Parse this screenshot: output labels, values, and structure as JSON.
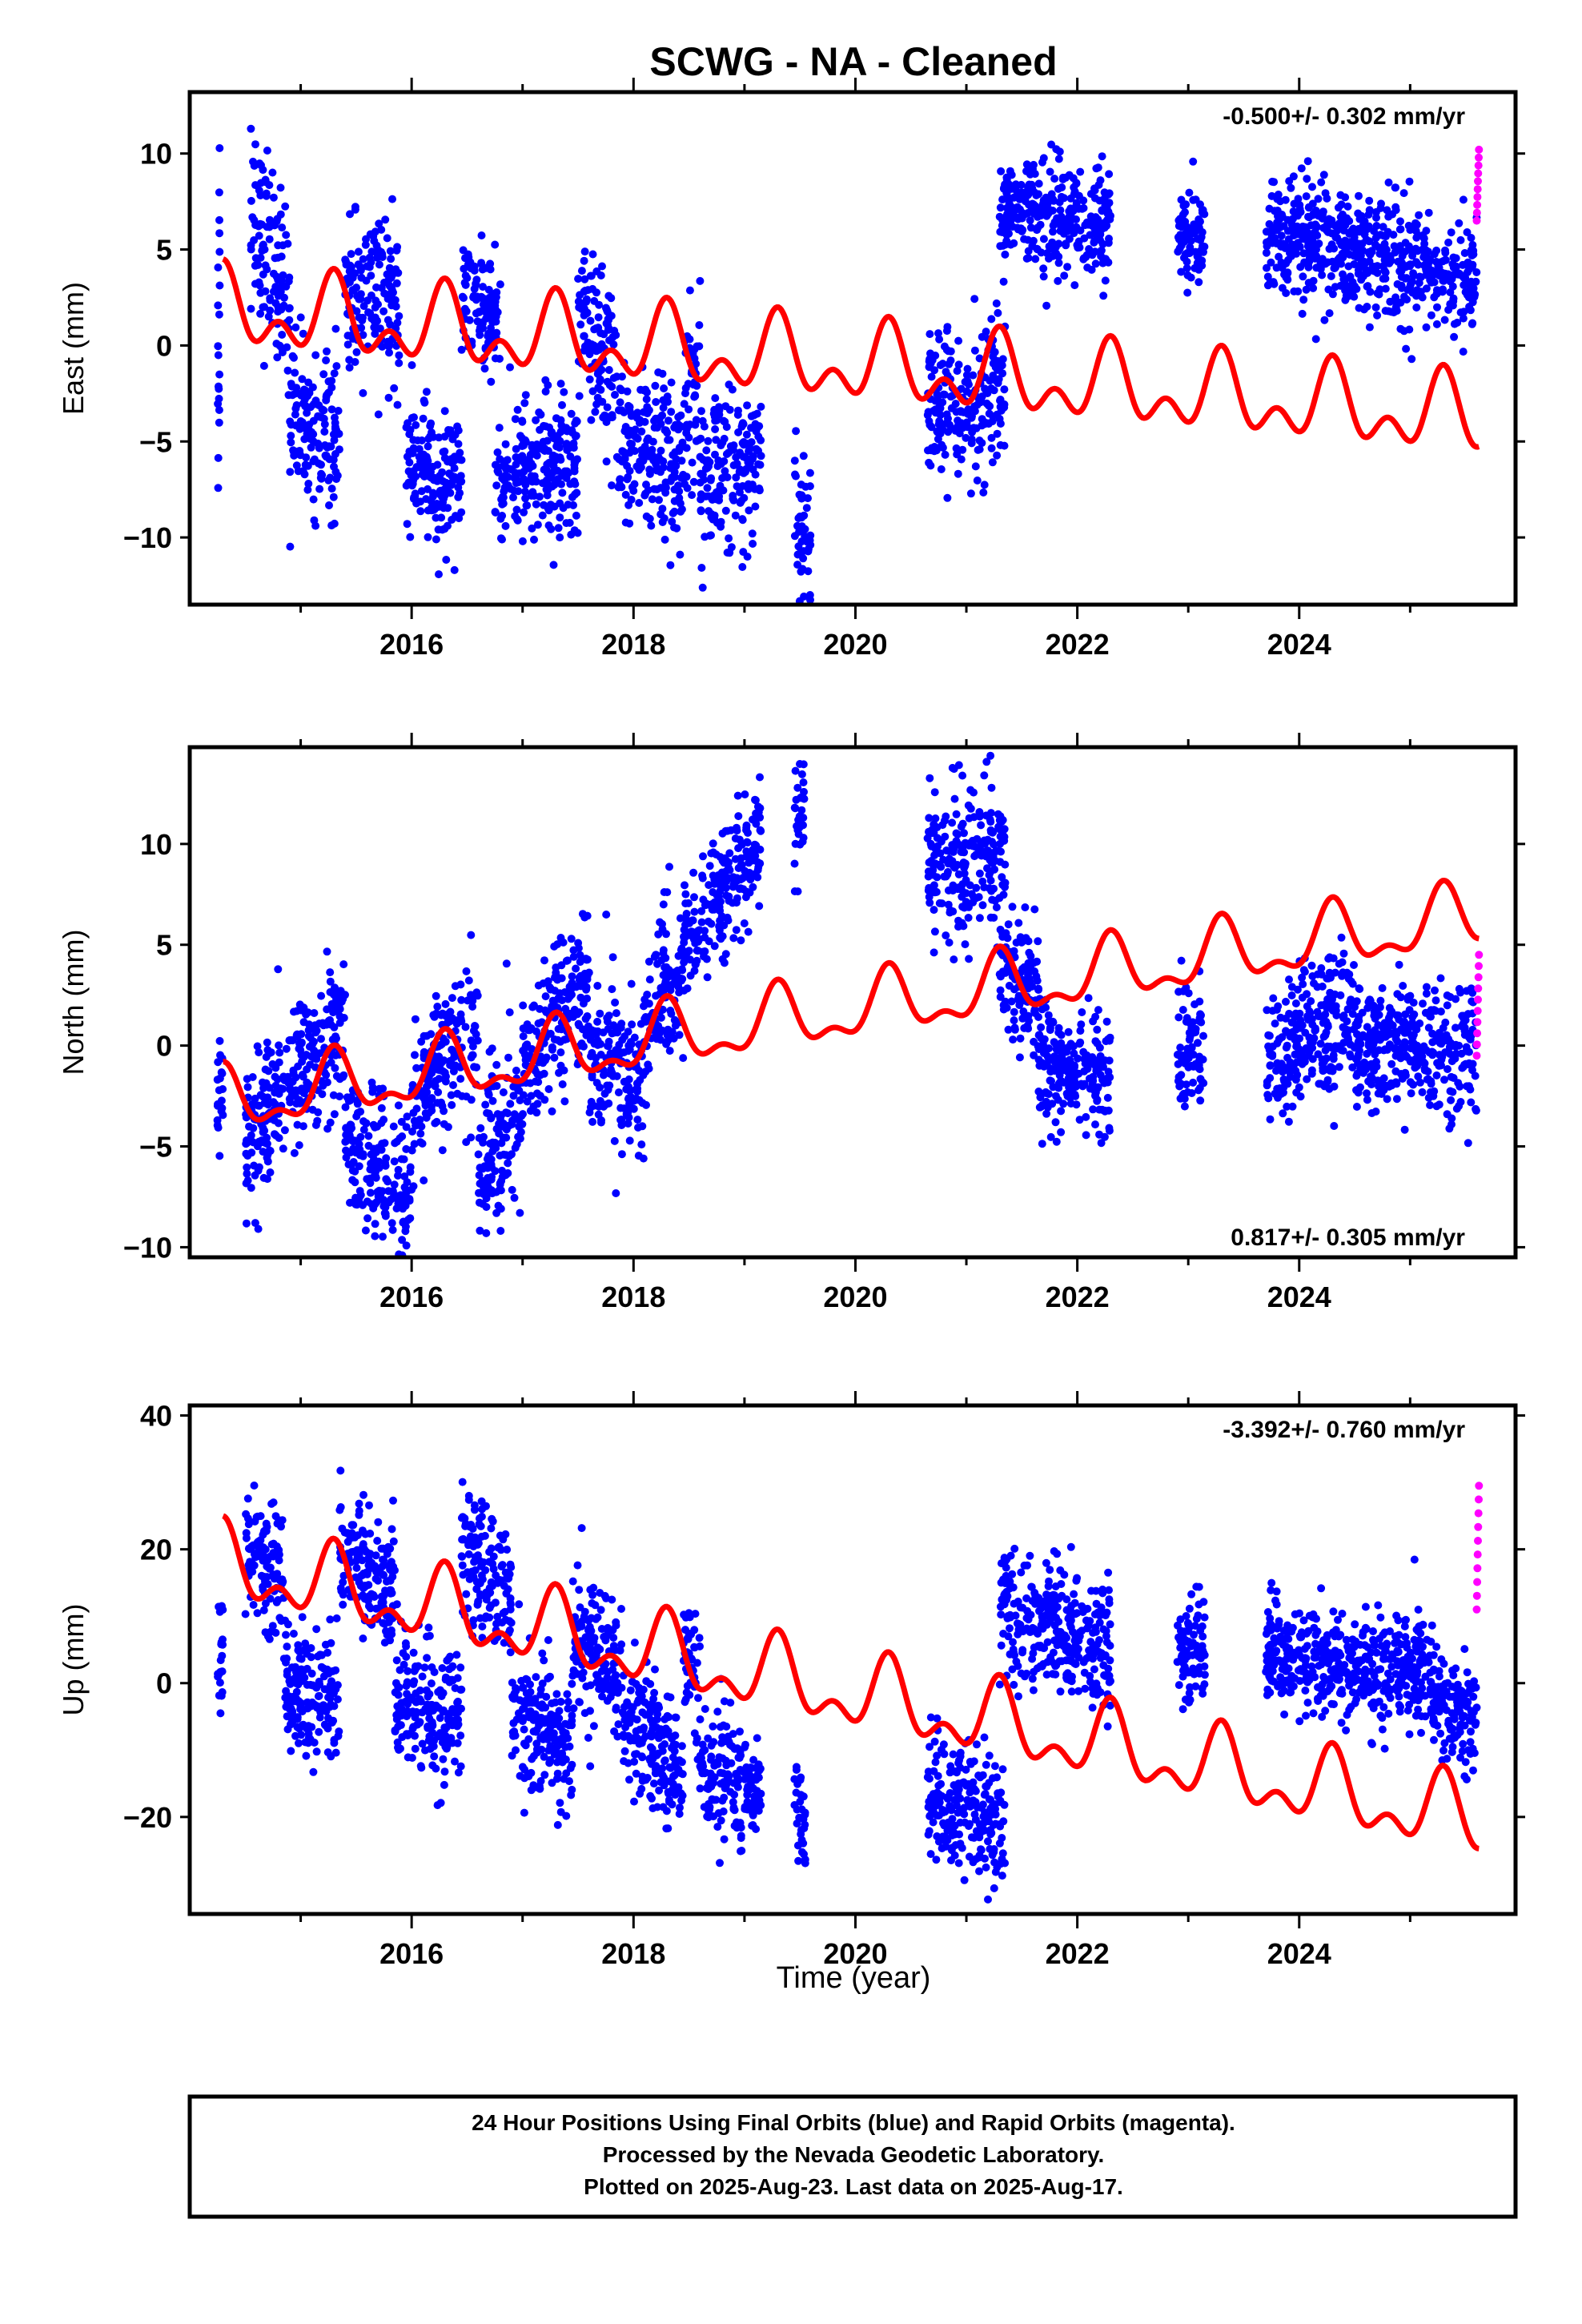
{
  "title": "SCWG  - NA - Cleaned",
  "xlabel": "Time (year)",
  "footer": {
    "line1": "24 Hour Positions Using Final Orbits (blue) and Rapid Orbits (magenta).",
    "line2": "Processed by the Nevada Geodetic Laboratory.",
    "line3": "Plotted on 2025-Aug-23. Last data on 2025-Aug-17."
  },
  "colors": {
    "final": "#0000ff",
    "rapid": "#ff00ff",
    "model": "#ff0000"
  },
  "chart_data": [
    {
      "type": "scatter",
      "component": "east",
      "ylabel": "East (mm)",
      "rate": "-0.500+/- 0.302 mm/yr",
      "xlim": [
        2014.0,
        2025.95
      ],
      "ylim": [
        -13.5,
        13.2
      ],
      "yticks": [
        -10,
        -5,
        0,
        5,
        10
      ],
      "xticks": [
        2016,
        2018,
        2020,
        2022,
        2024
      ],
      "grid": false,
      "segments": [
        {
          "x": [
            2014.25,
            2014.27
          ],
          "y": [
            -4,
            5
          ],
          "spread": 4.5
        },
        {
          "x": [
            2014.55,
            2014.9
          ],
          "y": [
            6,
            3
          ],
          "spread": 2.5
        },
        {
          "x": [
            2014.9,
            2015.35
          ],
          "y": [
            -3.5,
            -5
          ],
          "spread": 2
        },
        {
          "x": [
            2015.4,
            2015.9
          ],
          "y": [
            2.5,
            2
          ],
          "spread": 2
        },
        {
          "x": [
            2015.95,
            2016.45
          ],
          "y": [
            -6.5,
            -7
          ],
          "spread": 1.8
        },
        {
          "x": [
            2016.45,
            2016.8
          ],
          "y": [
            2.5,
            1.5
          ],
          "spread": 1.5
        },
        {
          "x": [
            2016.75,
            2017.5
          ],
          "y": [
            -7,
            -6
          ],
          "spread": 1.8
        },
        {
          "x": [
            2017.5,
            2017.85
          ],
          "y": [
            1.5,
            -2
          ],
          "spread": 2.2
        },
        {
          "x": [
            2017.85,
            2018.45
          ],
          "y": [
            -5,
            -6.5
          ],
          "spread": 2
        },
        {
          "x": [
            2018.45,
            2018.6
          ],
          "y": [
            -3,
            -2
          ],
          "spread": 2.5
        },
        {
          "x": [
            2018.6,
            2019.15
          ],
          "y": [
            -7,
            -6
          ],
          "spread": 2
        },
        {
          "x": [
            2019.45,
            2019.6
          ],
          "y": [
            -9,
            -10
          ],
          "spread": 2
        },
        {
          "x": [
            2020.65,
            2021.35
          ],
          "y": [
            -3,
            -3
          ],
          "spread": 2
        },
        {
          "x": [
            2021.3,
            2022.3
          ],
          "y": [
            7,
            6
          ],
          "spread": 1.5
        },
        {
          "x": [
            2022.9,
            2023.15
          ],
          "y": [
            5.5,
            5.5
          ],
          "spread": 1.3
        },
        {
          "x": [
            2023.7,
            2025.6
          ],
          "y": [
            6,
            3.5
          ],
          "spread": 1.5
        }
      ],
      "rapid": {
        "x": [
          2025.6,
          2025.62
        ],
        "y": [
          6.5,
          10.2
        ]
      },
      "model": {
        "slope": -0.5,
        "offset": 1.8,
        "amp1": 1.5,
        "amp2": 1.2,
        "x0": 2014.3,
        "x1": 2025.62
      }
    },
    {
      "type": "scatter",
      "component": "north",
      "ylabel": "North (mm)",
      "rate": "0.817+/- 0.305 mm/yr",
      "xlim": [
        2014.0,
        2025.95
      ],
      "ylim": [
        -10.5,
        14.8
      ],
      "yticks": [
        -10,
        -5,
        0,
        5,
        10
      ],
      "xticks": [
        2016,
        2018,
        2020,
        2022,
        2024
      ],
      "grid": false,
      "segments": [
        {
          "x": [
            2014.25,
            2014.3
          ],
          "y": [
            -3,
            -2.5
          ],
          "spread": 1.5
        },
        {
          "x": [
            2014.5,
            2015.0
          ],
          "y": [
            -5,
            -1
          ],
          "spread": 1.8
        },
        {
          "x": [
            2015.0,
            2015.4
          ],
          "y": [
            -1,
            1
          ],
          "spread": 1.8
        },
        {
          "x": [
            2015.4,
            2016.0
          ],
          "y": [
            -5,
            -7.5
          ],
          "spread": 1.8
        },
        {
          "x": [
            2016.0,
            2016.6
          ],
          "y": [
            -3,
            1.5
          ],
          "spread": 1.8
        },
        {
          "x": [
            2016.6,
            2017.0
          ],
          "y": [
            -6.5,
            -3
          ],
          "spread": 2.2
        },
        {
          "x": [
            2017.0,
            2017.6
          ],
          "y": [
            -1,
            3.5
          ],
          "spread": 1.8
        },
        {
          "x": [
            2017.6,
            2018.1
          ],
          "y": [
            0,
            -2.5
          ],
          "spread": 2.2
        },
        {
          "x": [
            2018.1,
            2018.45
          ],
          "y": [
            1,
            4
          ],
          "spread": 2
        },
        {
          "x": [
            2018.45,
            2019.15
          ],
          "y": [
            5,
            10
          ],
          "spread": 1.5
        },
        {
          "x": [
            2019.45,
            2019.55
          ],
          "y": [
            10.5,
            11.5
          ],
          "spread": 1.5
        },
        {
          "x": [
            2020.65,
            2021.35
          ],
          "y": [
            9,
            9.5
          ],
          "spread": 1.8
        },
        {
          "x": [
            2021.3,
            2021.65
          ],
          "y": [
            4,
            2.5
          ],
          "spread": 1.5
        },
        {
          "x": [
            2021.65,
            2022.3
          ],
          "y": [
            -1,
            -1.5
          ],
          "spread": 1.5
        },
        {
          "x": [
            2022.9,
            2023.15
          ],
          "y": [
            0,
            0
          ],
          "spread": 1.5
        },
        {
          "x": [
            2023.7,
            2024.5
          ],
          "y": [
            -1,
            2
          ],
          "spread": 1.8
        },
        {
          "x": [
            2024.5,
            2025.6
          ],
          "y": [
            0,
            -0.5
          ],
          "spread": 1.5
        }
      ],
      "rapid": {
        "x": [
          2025.6,
          2025.62
        ],
        "y": [
          -0.5,
          4.5
        ]
      },
      "model": {
        "slope": 0.817,
        "offset": -2.9,
        "amp1": 1.4,
        "amp2": 0.7,
        "x0": 2014.3,
        "x1": 2025.62
      }
    },
    {
      "type": "scatter",
      "component": "up",
      "ylabel": "Up (mm)",
      "rate": "-3.392+/- 0.760 mm/yr",
      "xlim": [
        2014.0,
        2025.95
      ],
      "ylim": [
        -34.5,
        41.5
      ],
      "yticks": [
        -20,
        0,
        20,
        40
      ],
      "xticks": [
        2016,
        2018,
        2020,
        2022,
        2024
      ],
      "grid": false,
      "segments": [
        {
          "x": [
            2014.25,
            2014.3
          ],
          "y": [
            3,
            2
          ],
          "spread": 5
        },
        {
          "x": [
            2014.5,
            2014.85
          ],
          "y": [
            22,
            15
          ],
          "spread": 4.5
        },
        {
          "x": [
            2014.85,
            2015.35
          ],
          "y": [
            0,
            -3
          ],
          "spread": 5
        },
        {
          "x": [
            2015.35,
            2015.85
          ],
          "y": [
            20,
            14
          ],
          "spread": 5
        },
        {
          "x": [
            2015.85,
            2016.45
          ],
          "y": [
            -3,
            -5
          ],
          "spread": 5
        },
        {
          "x": [
            2016.45,
            2016.9
          ],
          "y": [
            20,
            12
          ],
          "spread": 5
        },
        {
          "x": [
            2016.9,
            2017.45
          ],
          "y": [
            -4,
            -10
          ],
          "spread": 5
        },
        {
          "x": [
            2017.45,
            2017.9
          ],
          "y": [
            6,
            2
          ],
          "spread": 5
        },
        {
          "x": [
            2017.9,
            2018.45
          ],
          "y": [
            -5,
            -14
          ],
          "spread": 5
        },
        {
          "x": [
            2018.45,
            2018.6
          ],
          "y": [
            5,
            0
          ],
          "spread": 5
        },
        {
          "x": [
            2018.6,
            2019.15
          ],
          "y": [
            -13,
            -15
          ],
          "spread": 4.5
        },
        {
          "x": [
            2019.45,
            2019.55
          ],
          "y": [
            -18,
            -20
          ],
          "spread": 4
        },
        {
          "x": [
            2020.65,
            2021.35
          ],
          "y": [
            -17,
            -21
          ],
          "spread": 4.5
        },
        {
          "x": [
            2021.3,
            2022.3
          ],
          "y": [
            10,
            6
          ],
          "spread": 4.5
        },
        {
          "x": [
            2022.9,
            2023.15
          ],
          "y": [
            5,
            5
          ],
          "spread": 4
        },
        {
          "x": [
            2023.7,
            2025.2
          ],
          "y": [
            4,
            1
          ],
          "spread": 4
        },
        {
          "x": [
            2025.2,
            2025.6
          ],
          "y": [
            -3,
            -6
          ],
          "spread": 4
        }
      ],
      "rapid": {
        "x": [
          2025.6,
          2025.62
        ],
        "y": [
          11,
          29.5
        ]
      },
      "model": {
        "slope": -3.392,
        "offset": 17.5,
        "amp1": 4.5,
        "amp2": 3.0,
        "x0": 2014.3,
        "x1": 2025.62
      }
    }
  ]
}
